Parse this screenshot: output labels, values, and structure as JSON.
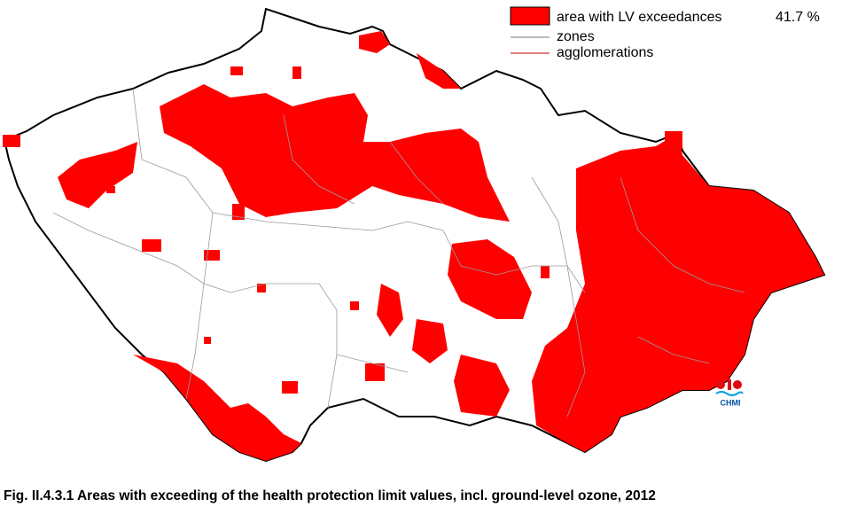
{
  "legend": [
    {
      "label": "area with LV exceedances"
    },
    {
      "label": "zones"
    },
    {
      "label": "agglomerations"
    }
  ],
  "share_label": "41.7 %",
  "logo": "CHMI",
  "caption": "Fig. II.4.3.1  Areas with exceeding of the health protection limit values, incl. ground-level ozone, 2012"
}
